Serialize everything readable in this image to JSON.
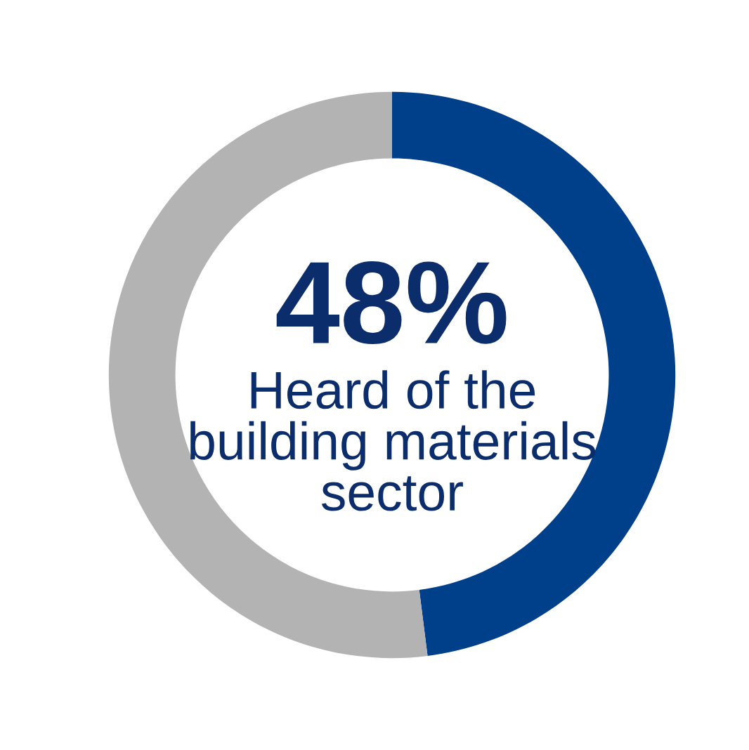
{
  "chart_data": {
    "type": "donut",
    "categories": [
      "Heard of the building materials sector",
      null
    ],
    "values": [
      48,
      52
    ],
    "colors": [
      "#003f8a",
      "#b3b3b3"
    ],
    "value_labels": [
      "48%",
      null
    ]
  }
}
